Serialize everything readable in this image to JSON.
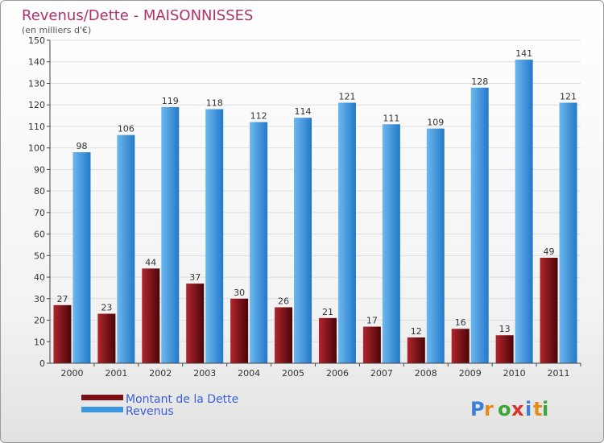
{
  "chart_data": {
    "type": "bar",
    "title": "Revenus/Dette - MAISONNISSES",
    "subtitle": "(en milliers d'€)",
    "categories": [
      "2000",
      "2001",
      "2002",
      "2003",
      "2004",
      "2005",
      "2006",
      "2007",
      "2008",
      "2009",
      "2010",
      "2011"
    ],
    "series": [
      {
        "name": "Montant de la Dette",
        "color": "#7a0f14",
        "values": [
          27,
          23,
          44,
          37,
          30,
          26,
          21,
          17,
          12,
          16,
          13,
          49
        ]
      },
      {
        "name": "Revenus",
        "color": "#3a97df",
        "values": [
          98,
          106,
          119,
          118,
          112,
          114,
          121,
          111,
          109,
          128,
          141,
          121
        ]
      }
    ],
    "ylim": [
      0,
      150
    ],
    "ytick_step": 10,
    "grid": true,
    "legend": "bottom-left"
  },
  "branding": {
    "logo": "Proxiti"
  },
  "colors": {
    "title": "#b0306a",
    "legend_text": "#3a5fdb"
  }
}
